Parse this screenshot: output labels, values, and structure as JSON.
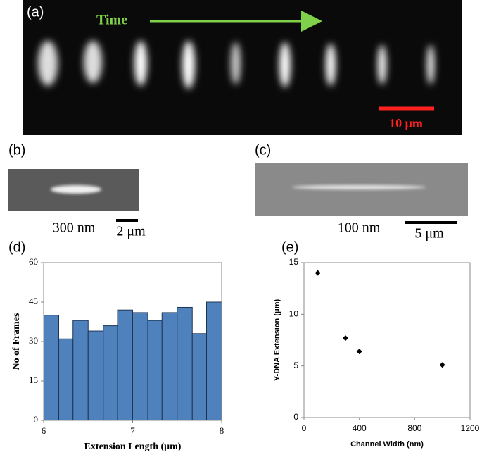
{
  "panels": {
    "a": {
      "label": "(a)",
      "time": "Time",
      "scale": "10 μm"
    },
    "b": {
      "label": "(b)",
      "width": "300 nm",
      "scale": "2 μm"
    },
    "c": {
      "label": "(c)",
      "width": "100 nm",
      "scale": "5 μm"
    },
    "d": {
      "label": "(d)"
    },
    "e": {
      "label": "(e)"
    }
  },
  "chart_data": [
    {
      "type": "histogram",
      "x_label": "Extension Length (μm)",
      "y_label": "No of Frames",
      "bins": [
        6,
        6.17,
        6.33,
        6.5,
        6.67,
        6.83,
        7,
        7.17,
        7.33,
        7.5,
        7.67,
        7.83,
        8
      ],
      "values": [
        40,
        31,
        38,
        34,
        36,
        42,
        41,
        38,
        41,
        43,
        33,
        45
      ],
      "color": "#4f81bd",
      "xlim": [
        6,
        8
      ],
      "xticks": [
        6,
        7,
        8
      ],
      "ylim": [
        0,
        60
      ],
      "yticks": [
        0,
        15,
        30,
        45,
        60
      ]
    },
    {
      "type": "scatter",
      "x_label": "Channel Width (nm)",
      "y_label": "Y-DNA Extension (μm)",
      "x": [
        100,
        300,
        400,
        1000
      ],
      "values": [
        14,
        7.7,
        6.4,
        5.1
      ],
      "color": "#000000",
      "xlim": [
        0,
        1200
      ],
      "xticks": [
        0,
        400,
        800,
        1200
      ],
      "ylim": [
        0,
        15
      ],
      "yticks": [
        0,
        5,
        10,
        15
      ]
    }
  ]
}
